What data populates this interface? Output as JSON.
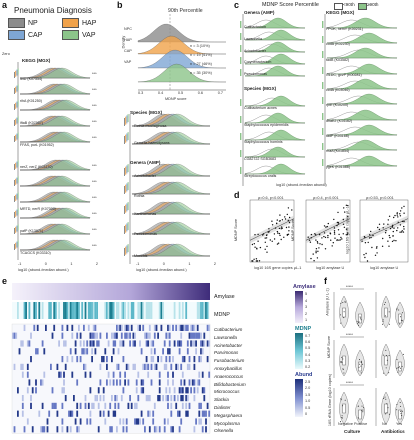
{
  "panels": {
    "a": "a",
    "b": "b",
    "c": "c",
    "d": "d",
    "e": "e",
    "f": "f"
  },
  "legend_a": {
    "title": "Pneumonia Diagnosis",
    "items": [
      {
        "label": "NP",
        "color": "#8c8c8c"
      },
      {
        "label": "HAP",
        "color": "#f0a24a"
      },
      {
        "label": "CAP",
        "color": "#7ea6d4"
      },
      {
        "label": "VAP",
        "color": "#8cc48a"
      }
    ]
  },
  "panel_a": {
    "zero_label": "Zero",
    "section": "KEGG (MGX)",
    "genes": [
      "ibtD (K07554)",
      "rihA (K01250)",
      "iftaB (K07057)",
      "FFAS, purL (K01952)",
      "nerZ, nerZ (K03370)",
      "...",
      "MRTD, nerR (K07000)",
      "pafP (K13871)",
      "TCAGCS (K03310)",
      "..."
    ],
    "xlabel": "log10 (abund./median abund.)",
    "ticks": [
      "-1",
      "0",
      "1",
      "2"
    ]
  },
  "panel_b": {
    "header": "90th Percentile",
    "groups": [
      {
        "label": "NPC",
        "n": "n = 3 (10%)"
      },
      {
        "label": "HAP",
        "n": "n = 19 (41%)"
      },
      {
        "label": "CAP",
        "n": "n = 27 (46%)"
      },
      {
        "label": "VAP",
        "n": "n = 35 (30%)"
      }
    ],
    "ylabel": "Density",
    "xlabel": "MDNP score",
    "xticks": [
      "0.3",
      "0.4",
      "0.5",
      "0.6",
      "0.7"
    ],
    "species_title": "Species (MGX)",
    "species": [
      "Rothia mucilaginosa",
      "Gemella haemolysans"
    ],
    "genera_title": "Genera (AMP)",
    "genera": [
      "Acinetobacter",
      "Rothia",
      "Xanthomonas",
      "Pseudomonas",
      "Mucoids"
    ],
    "xlabel2": "log10 (abund./median abund.)",
    "ticks2": [
      "-1",
      "0",
      "1",
      "2"
    ]
  },
  "panel_c": {
    "title": "MDNP Score Percentile",
    "legend": [
      {
        "label": "<90th",
        "color": "#ffffff"
      },
      {
        "label": "≥90th",
        "color": "#8cc48a"
      }
    ],
    "genera_title": "Genera (AMP)",
    "genera": [
      "Cutibacterium",
      "Lawsonella",
      "Acinetobacter",
      "Corynebacterium",
      "Pseudomonas"
    ],
    "species_title": "Species (MGX)",
    "species": [
      "Cutibacterium acnes",
      "Staphylococcus epidermidis",
      "Staphylococcus hominis",
      "CG82722 SGB3683",
      "Streptococcus oralis"
    ],
    "kegg_title": "KEGG (MGX)",
    "kegg": [
      "FPOK, hemY (K00231)",
      "codA (K02230)",
      "tadB (K03582)",
      "GLDC, gcvP (K00281)",
      "ccdA (K03046)",
      "rpiE (K10200)",
      "dnaE2 (K14162)",
      "tadF (K03168)",
      "rnaA (K01854)",
      "ygeK (K01588)"
    ],
    "xlabel": "log10 (abund./median abund.)",
    "ticks": [
      "-1",
      "0",
      "1",
      "2"
    ]
  },
  "panel_d": {
    "plots": [
      {
        "stats": "ρ=0.6, p<0.001",
        "ylabel": "MDNP Score",
        "xlabel": "log10 16S gene copies μL-1"
      },
      {
        "stats": "ρ=0.4, p<0.001",
        "ylabel": "MDNP Score",
        "xlabel": "log10 amylase U"
      },
      {
        "stats": "ρ=0.53, p<0.001",
        "ylabel": "log10 16S gene copies μL-1",
        "xlabel": "log10 amylase U"
      }
    ]
  },
  "panel_e": {
    "amylase_label": "Amylase",
    "mdnp_label": "MDNP",
    "bacteria": [
      "Cutibacterium",
      "Lawsonella",
      "Acinetobacter",
      "Parvimonas",
      "Fusobacterium",
      "Anoxybacillus",
      "Anaerococcus",
      "Bifidobacterium",
      "Micrococcus",
      "Slackia",
      "Dialister",
      "Megasphaera",
      "Mycoplasma",
      "Olsenella"
    ],
    "scale_amylase": {
      "title": "Amylase",
      "ticks": [
        "5",
        "4",
        "3",
        "2",
        "1"
      ]
    },
    "scale_mdnp": {
      "title": "MDNP",
      "ticks": [
        "0.7",
        "0.6",
        "0.5",
        "0.4",
        "0.3",
        "0.2"
      ]
    },
    "scale_abund": {
      "title": "Abund",
      "ticks": [
        "2.5",
        "2.0",
        "1.5",
        "1.0",
        "0.5",
        "0"
      ]
    }
  },
  "panel_f": {
    "ylabels": [
      "Amylase (U L-1)",
      "MDNP Score",
      "16S rRNA Gene (log10 copies)"
    ],
    "culture_labels": [
      "Negative",
      "Positive"
    ],
    "antibiotic_labels": [
      "No",
      "Yes"
    ],
    "culture_title": "Culture",
    "antibiotics_title": "Antibiotics",
    "sig": "*****"
  },
  "chart_data": [
    {
      "type": "area",
      "title": "",
      "xlabel": "MDNP score",
      "ylabel": "Density",
      "x": [
        0.3,
        0.4,
        0.5,
        0.6,
        0.7
      ],
      "series": [
        {
          "name": "NPC",
          "values": [
            0.2,
            1.0,
            0.6,
            0.2,
            0.05
          ]
        },
        {
          "name": "HAP",
          "values": [
            0.1,
            0.8,
            1.0,
            0.4,
            0.1
          ]
        },
        {
          "name": "CAP",
          "values": [
            0.1,
            0.6,
            1.0,
            0.5,
            0.1
          ]
        },
        {
          "name": "VAP",
          "values": [
            0.1,
            0.7,
            1.0,
            0.5,
            0.1
          ]
        }
      ]
    },
    {
      "type": "scatter",
      "title": "",
      "xlabel": "log10 16S gene copies μL-1",
      "ylabel": "MDNP Score",
      "annotation": "ρ=0.6, p<0.001"
    },
    {
      "type": "scatter",
      "title": "",
      "xlabel": "log10 amylase U",
      "ylabel": "MDNP Score",
      "annotation": "ρ=0.4, p<0.001"
    },
    {
      "type": "scatter",
      "title": "",
      "xlabel": "log10 amylase U",
      "ylabel": "log10 16S gene copies μL-1",
      "annotation": "ρ=0.53, p<0.001"
    }
  ],
  "colors": {
    "np": "#8c8c8c",
    "hap": "#f0a24a",
    "cap": "#7ea6d4",
    "vap": "#8cc48a",
    "purple": "#5a3d8e",
    "teal": "#4fb8c9"
  }
}
